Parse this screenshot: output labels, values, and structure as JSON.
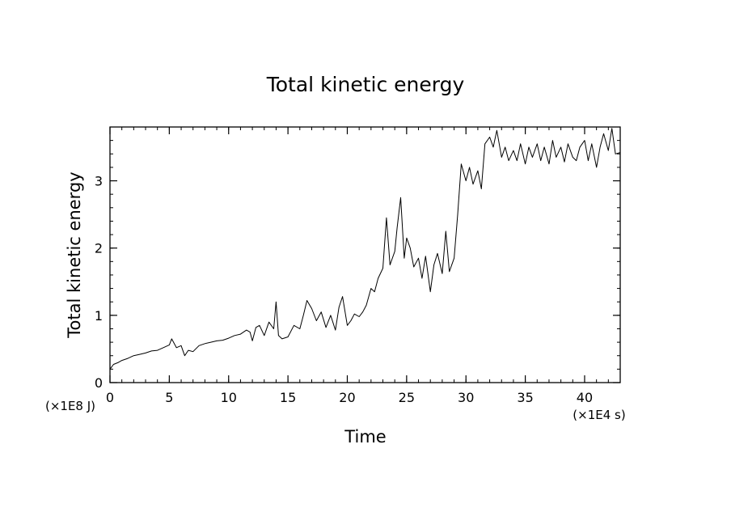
{
  "chart_data": {
    "type": "line",
    "title": "Total kinetic energy",
    "xlabel": "Time",
    "ylabel": "Total kinetic energy",
    "x_unit": "(×1E4 s)",
    "y_unit": "(×1E8 J)",
    "xlim": [
      0,
      43
    ],
    "ylim": [
      0,
      3.8
    ],
    "x_ticks": [
      0,
      5,
      10,
      15,
      20,
      25,
      30,
      35,
      40
    ],
    "x_tick_labels": [
      "0",
      "5",
      "10",
      "15",
      "20",
      "25",
      "30",
      "35",
      "40"
    ],
    "y_ticks": [
      0,
      1,
      2,
      3
    ],
    "y_tick_labels": [
      "0",
      "1",
      "2",
      "3"
    ],
    "grid": false,
    "legend": "none",
    "line_color": "#000000",
    "series": [
      {
        "x": [
          0,
          0.3,
          0.7,
          1.0,
          1.5,
          2.0,
          2.5,
          3.0,
          3.5,
          4.0,
          4.5,
          5.0,
          5.2,
          5.6,
          6.0,
          6.3,
          6.6,
          7.0,
          7.5,
          8.0,
          8.5,
          9.0,
          9.5,
          10.0,
          10.5,
          11.0,
          11.5,
          11.8,
          12.0,
          12.3,
          12.6,
          13.0,
          13.4,
          13.8,
          14.0,
          14.2,
          14.5,
          15.0,
          15.5,
          16.0,
          16.3,
          16.6,
          17.0,
          17.4,
          17.8,
          18.2,
          18.6,
          19.0,
          19.3,
          19.6,
          20.0,
          20.3,
          20.6,
          21.0,
          21.3,
          21.6,
          22.0,
          22.3,
          22.6,
          23.0,
          23.3,
          23.6,
          24.0,
          24.2,
          24.5,
          24.8,
          25.0,
          25.3,
          25.6,
          26.0,
          26.3,
          26.6,
          27.0,
          27.3,
          27.6,
          28.0,
          28.3,
          28.6,
          29.0,
          29.3,
          29.6,
          30.0,
          30.3,
          30.6,
          31.0,
          31.3,
          31.6,
          32.0,
          32.3,
          32.6,
          33.0,
          33.3,
          33.6,
          34.0,
          34.3,
          34.6,
          35.0,
          35.3,
          35.6,
          36.0,
          36.3,
          36.6,
          37.0,
          37.3,
          37.6,
          38.0,
          38.3,
          38.6,
          39.0,
          39.3,
          39.6,
          40.0,
          40.3,
          40.6,
          41.0,
          41.3,
          41.6,
          42.0,
          42.3,
          42.6,
          43.0
        ],
        "y": [
          0.2,
          0.27,
          0.3,
          0.33,
          0.36,
          0.4,
          0.42,
          0.44,
          0.47,
          0.48,
          0.52,
          0.56,
          0.65,
          0.52,
          0.55,
          0.4,
          0.48,
          0.46,
          0.55,
          0.58,
          0.6,
          0.62,
          0.63,
          0.66,
          0.7,
          0.72,
          0.78,
          0.75,
          0.62,
          0.82,
          0.85,
          0.7,
          0.9,
          0.8,
          1.2,
          0.7,
          0.65,
          0.68,
          0.85,
          0.8,
          1.0,
          1.22,
          1.1,
          0.92,
          1.05,
          0.82,
          1.0,
          0.78,
          1.12,
          1.28,
          0.85,
          0.92,
          1.02,
          0.98,
          1.05,
          1.15,
          1.4,
          1.35,
          1.55,
          1.7,
          2.45,
          1.75,
          1.95,
          2.3,
          2.75,
          1.85,
          2.15,
          2.0,
          1.72,
          1.85,
          1.55,
          1.88,
          1.35,
          1.75,
          1.92,
          1.62,
          2.25,
          1.65,
          1.85,
          2.5,
          3.25,
          3.0,
          3.2,
          2.95,
          3.15,
          2.88,
          3.55,
          3.65,
          3.5,
          3.75,
          3.35,
          3.5,
          3.3,
          3.45,
          3.3,
          3.55,
          3.25,
          3.5,
          3.35,
          3.55,
          3.3,
          3.5,
          3.25,
          3.6,
          3.35,
          3.5,
          3.28,
          3.55,
          3.35,
          3.3,
          3.5,
          3.6,
          3.3,
          3.55,
          3.2,
          3.5,
          3.7,
          3.45,
          3.78,
          3.4,
          3.42
        ]
      }
    ]
  }
}
